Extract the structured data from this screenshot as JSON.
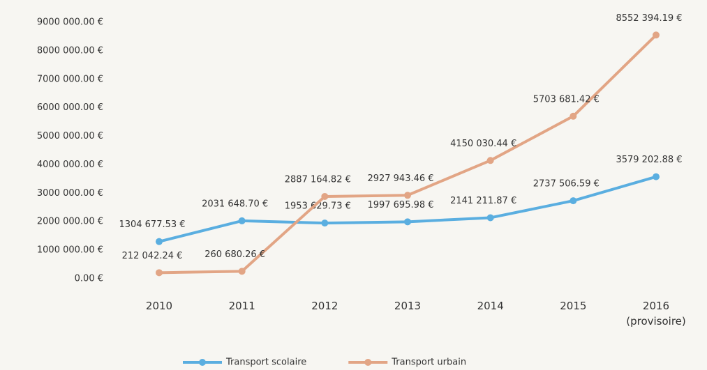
{
  "chart_data": {
    "type": "line",
    "categories": [
      "2010",
      "2011",
      "2012",
      "2013",
      "2014",
      "2015",
      "2016 (provisoire)"
    ],
    "series": [
      {
        "name": "Transport scolaire",
        "color": "#5aaee0",
        "values": [
          1304677.53,
          2031648.7,
          1953629.73,
          1997695.98,
          2141211.87,
          2737506.59,
          3579202.88
        ],
        "value_labels": [
          "1304 677.53 €",
          "2031 648.70 €",
          "1953 629.73 €",
          "1997 695.98 €",
          "2141 211.87 €",
          "2737 506.59 €",
          "3579 202.88 €"
        ]
      },
      {
        "name": "Transport urbain",
        "color": "#e2a585",
        "values": [
          212042.24,
          260680.26,
          2887164.82,
          2927943.46,
          4150030.44,
          5703681.42,
          8552394.19
        ],
        "value_labels": [
          "212 042.24 €",
          "260 680.26 €",
          "2887 164.82 €",
          "2927 943.46 €",
          "4150 030.44 €",
          "5703 681.42 €",
          "8552 394.19 €"
        ]
      }
    ],
    "ylim": [
      0,
      9000000
    ],
    "yticks": [
      {
        "value": 0,
        "label": "0.00 €"
      },
      {
        "value": 1000000,
        "label": "1000 000.00 €"
      },
      {
        "value": 2000000,
        "label": "2000 000.00 €"
      },
      {
        "value": 3000000,
        "label": "3000 000.00 €"
      },
      {
        "value": 4000000,
        "label": "4000 000.00 €"
      },
      {
        "value": 5000000,
        "label": "5000 000.00 €"
      },
      {
        "value": 6000000,
        "label": "6000 000.00 €"
      },
      {
        "value": 7000000,
        "label": "7000 000.00 €"
      },
      {
        "value": 8000000,
        "label": "8000 000.00 €"
      },
      {
        "value": 9000000,
        "label": "9000 000.00 €"
      }
    ],
    "grid": false,
    "legend": "bottom"
  }
}
